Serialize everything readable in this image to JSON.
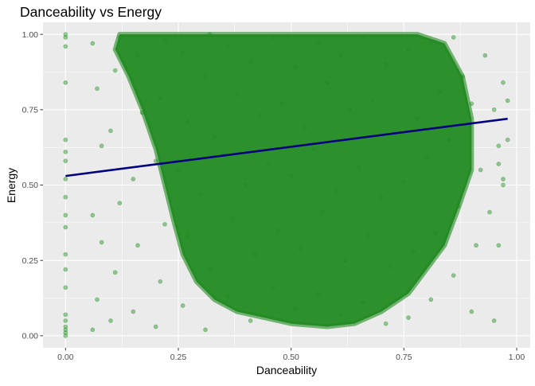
{
  "chart_data": {
    "type": "scatter",
    "title": "Danceability vs Energy",
    "xlabel": "Danceability",
    "ylabel": "Energy",
    "xlim": [
      -0.05,
      1.03
    ],
    "ylim": [
      -0.04,
      1.04
    ],
    "x_ticks": [
      0.0,
      0.25,
      0.5,
      0.75,
      1.0
    ],
    "x_tick_labels": [
      "0.00",
      "0.25",
      "0.50",
      "0.75",
      "1.00"
    ],
    "y_ticks": [
      0.0,
      0.25,
      0.5,
      0.75,
      1.0
    ],
    "y_tick_labels": [
      "0.00",
      "0.25",
      "0.50",
      "0.75",
      "1.00"
    ],
    "grid": true,
    "legend": "none",
    "colors": {
      "points": "#228B22",
      "trend": "#000080",
      "panel": "#EBEBEB",
      "grid": "#FFFFFF"
    },
    "points_alpha": 0.45,
    "points": [
      [
        0.0,
        0.0
      ],
      [
        0.0,
        0.01
      ],
      [
        0.0,
        0.02
      ],
      [
        0.0,
        0.03
      ],
      [
        0.0,
        0.05
      ],
      [
        0.0,
        0.07
      ],
      [
        0.0,
        0.16
      ],
      [
        0.0,
        0.22
      ],
      [
        0.0,
        0.27
      ],
      [
        0.0,
        0.36
      ],
      [
        0.0,
        0.4
      ],
      [
        0.0,
        0.46
      ],
      [
        0.0,
        0.52
      ],
      [
        0.0,
        0.58
      ],
      [
        0.0,
        0.61
      ],
      [
        0.0,
        0.65
      ],
      [
        0.0,
        0.84
      ],
      [
        0.0,
        0.96
      ],
      [
        0.0,
        0.99
      ],
      [
        0.0,
        1.0
      ],
      [
        0.06,
        0.02
      ],
      [
        0.07,
        0.12
      ],
      [
        0.08,
        0.31
      ],
      [
        0.06,
        0.4
      ],
      [
        0.08,
        0.63
      ],
      [
        0.07,
        0.82
      ],
      [
        0.06,
        0.97
      ],
      [
        0.1,
        0.05
      ],
      [
        0.11,
        0.21
      ],
      [
        0.12,
        0.44
      ],
      [
        0.1,
        0.68
      ],
      [
        0.11,
        0.88
      ],
      [
        0.12,
        0.99
      ],
      [
        0.15,
        0.08
      ],
      [
        0.16,
        0.3
      ],
      [
        0.15,
        0.52
      ],
      [
        0.17,
        0.74
      ],
      [
        0.16,
        0.93
      ],
      [
        0.2,
        0.03
      ],
      [
        0.21,
        0.18
      ],
      [
        0.22,
        0.37
      ],
      [
        0.2,
        0.58
      ],
      [
        0.21,
        0.79
      ],
      [
        0.22,
        0.98
      ],
      [
        0.26,
        0.1
      ],
      [
        0.27,
        0.33
      ],
      [
        0.25,
        0.55
      ],
      [
        0.27,
        0.71
      ],
      [
        0.26,
        0.94
      ],
      [
        0.31,
        0.02
      ],
      [
        0.32,
        0.22
      ],
      [
        0.3,
        0.47
      ],
      [
        0.33,
        0.66
      ],
      [
        0.31,
        0.86
      ],
      [
        0.32,
        1.0
      ],
      [
        0.36,
        0.13
      ],
      [
        0.37,
        0.39
      ],
      [
        0.35,
        0.6
      ],
      [
        0.38,
        0.8
      ],
      [
        0.36,
        0.96
      ],
      [
        0.41,
        0.05
      ],
      [
        0.42,
        0.27
      ],
      [
        0.4,
        0.5
      ],
      [
        0.43,
        0.73
      ],
      [
        0.41,
        0.91
      ],
      [
        0.46,
        0.16
      ],
      [
        0.47,
        0.35
      ],
      [
        0.45,
        0.57
      ],
      [
        0.48,
        0.77
      ],
      [
        0.46,
        0.99
      ],
      [
        0.51,
        0.09
      ],
      [
        0.52,
        0.29
      ],
      [
        0.5,
        0.53
      ],
      [
        0.53,
        0.69
      ],
      [
        0.51,
        0.89
      ],
      [
        0.56,
        0.14
      ],
      [
        0.57,
        0.41
      ],
      [
        0.55,
        0.62
      ],
      [
        0.58,
        0.84
      ],
      [
        0.56,
        0.97
      ],
      [
        0.61,
        0.07
      ],
      [
        0.62,
        0.25
      ],
      [
        0.6,
        0.48
      ],
      [
        0.63,
        0.75
      ],
      [
        0.61,
        0.93
      ],
      [
        0.66,
        0.11
      ],
      [
        0.67,
        0.33
      ],
      [
        0.65,
        0.56
      ],
      [
        0.68,
        0.78
      ],
      [
        0.66,
        0.99
      ],
      [
        0.71,
        0.04
      ],
      [
        0.72,
        0.23
      ],
      [
        0.7,
        0.46
      ],
      [
        0.73,
        0.67
      ],
      [
        0.71,
        0.9
      ],
      [
        0.76,
        0.06
      ],
      [
        0.77,
        0.28
      ],
      [
        0.75,
        0.51
      ],
      [
        0.78,
        0.72
      ],
      [
        0.76,
        0.95
      ],
      [
        0.81,
        0.12
      ],
      [
        0.82,
        0.34
      ],
      [
        0.8,
        0.59
      ],
      [
        0.83,
        0.81
      ],
      [
        0.81,
        0.97
      ],
      [
        0.86,
        0.2
      ],
      [
        0.87,
        0.43
      ],
      [
        0.85,
        0.65
      ],
      [
        0.88,
        0.86
      ],
      [
        0.86,
        0.99
      ],
      [
        0.9,
        0.08
      ],
      [
        0.91,
        0.3
      ],
      [
        0.92,
        0.55
      ],
      [
        0.9,
        0.77
      ],
      [
        0.93,
        0.93
      ],
      [
        0.95,
        0.05
      ],
      [
        0.96,
        0.3
      ],
      [
        0.94,
        0.41
      ],
      [
        0.96,
        0.57
      ],
      [
        0.95,
        0.75
      ],
      [
        0.97,
        0.84
      ],
      [
        0.98,
        0.65
      ],
      [
        0.97,
        0.52
      ],
      [
        0.96,
        0.63
      ],
      [
        0.97,
        0.5
      ],
      [
        0.98,
        0.78
      ]
    ],
    "trend_line": {
      "type": "linear",
      "points": [
        [
          0.0,
          0.53
        ],
        [
          0.98,
          0.72
        ]
      ]
    }
  }
}
